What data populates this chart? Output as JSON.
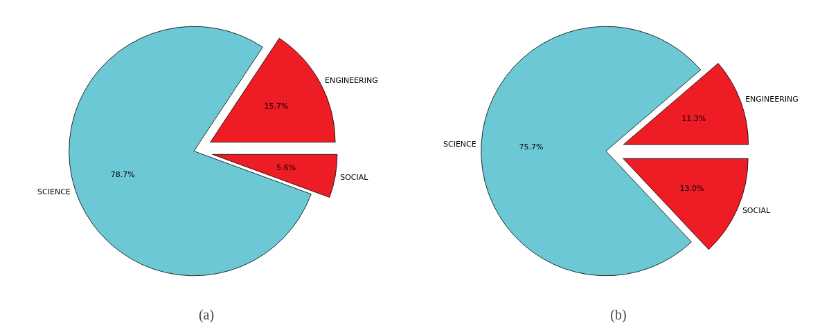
{
  "chart_data": [
    {
      "type": "pie",
      "title": "(a)",
      "categories": [
        "ENGINEERING",
        "SCIENCE",
        "SOCIAL"
      ],
      "values": [
        15.7,
        78.7,
        5.6
      ],
      "colors": [
        "#ee1c24",
        "#6cc8d4",
        "#ee1c24"
      ],
      "data_labels": true,
      "value_labels": [
        "15.7%",
        "78.7%",
        "5.6%"
      ]
    },
    {
      "type": "pie",
      "title": "(b)",
      "categories": [
        "ENGINEERING",
        "SCIENCE",
        "SOCIAL"
      ],
      "values": [
        11.3,
        75.7,
        13.0
      ],
      "colors": [
        "#ee1c24",
        "#6cc8d4",
        "#ee1c24"
      ],
      "data_labels": true,
      "value_labels": [
        "11.3%",
        "75.7%",
        "13.0%"
      ]
    }
  ]
}
